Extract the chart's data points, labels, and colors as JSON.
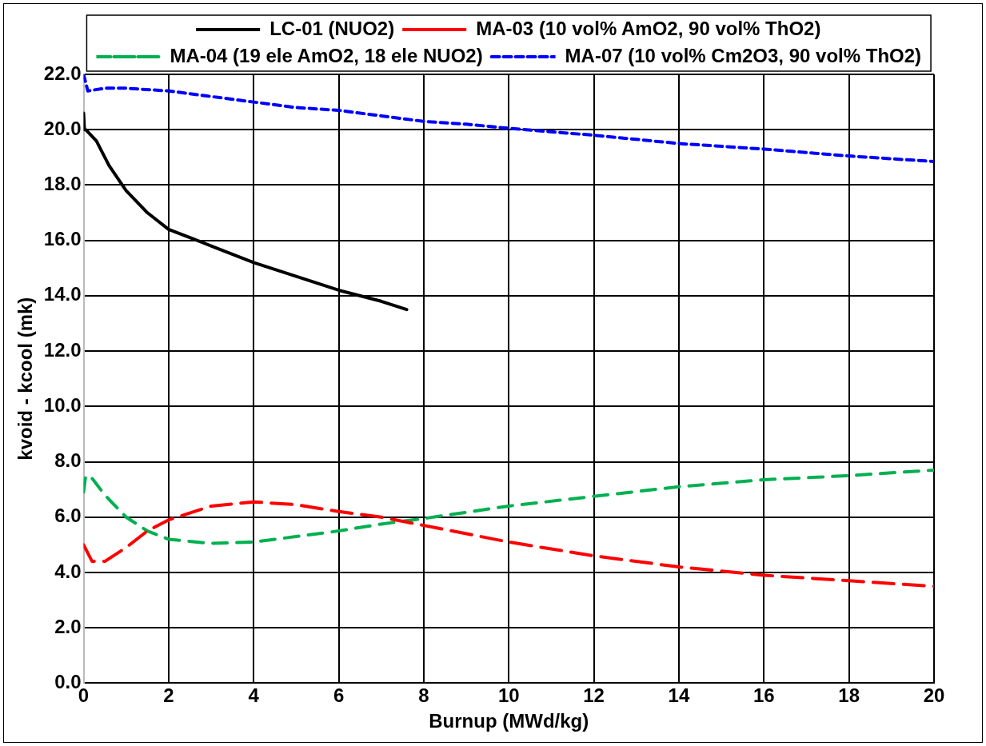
{
  "chart_data": {
    "type": "line",
    "xlabel": "Burnup (MWd/kg)",
    "ylabel": "kvoid - kcool (mk)",
    "xlim": [
      0,
      20
    ],
    "xticks": [
      0,
      2,
      4,
      6,
      8,
      10,
      12,
      14,
      16,
      18,
      20
    ],
    "ylim": [
      0,
      22
    ],
    "yticks": [
      {
        "value": 0,
        "label": "0.0"
      },
      {
        "value": 2,
        "label": "2.0"
      },
      {
        "value": 4,
        "label": "4.0"
      },
      {
        "value": 6,
        "label": "6.0"
      },
      {
        "value": 8,
        "label": "8.0"
      },
      {
        "value": 10,
        "label": "10.0"
      },
      {
        "value": 12,
        "label": "12.0"
      },
      {
        "value": 14,
        "label": "14.0"
      },
      {
        "value": 16,
        "label": "16.0"
      },
      {
        "value": 18,
        "label": "18.0"
      },
      {
        "value": 20,
        "label": "20.0"
      },
      {
        "value": 22,
        "label": "22.0"
      }
    ],
    "grid": true,
    "legend": "top",
    "marker": "none",
    "series": [
      {
        "name": "LC-01 (NUO2)",
        "color": "#000000",
        "line_style": "solid",
        "x": [
          0,
          0.02,
          0.05,
          0.3,
          0.6,
          1,
          1.5,
          2,
          2.5,
          3,
          4,
          5,
          6,
          7,
          7.6
        ],
        "values": [
          20.6,
          20.0,
          20.0,
          19.6,
          18.7,
          17.8,
          17.0,
          16.4,
          16.1,
          15.8,
          15.2,
          14.7,
          14.2,
          13.8,
          13.5
        ]
      },
      {
        "name": "MA-03 (10 vol% AmO2, 90 vol% ThO2)",
        "color": "#ff0000",
        "line_style": "longdash",
        "x": [
          0,
          0.2,
          0.5,
          1,
          1.5,
          2,
          3,
          4,
          5,
          6,
          7,
          8,
          10,
          12,
          14,
          16,
          18,
          20
        ],
        "values": [
          5.0,
          4.4,
          4.4,
          4.9,
          5.5,
          5.9,
          6.4,
          6.55,
          6.45,
          6.2,
          6.0,
          5.7,
          5.1,
          4.6,
          4.2,
          3.9,
          3.7,
          3.5
        ]
      },
      {
        "name": "MA-04 (19 ele AmO2, 18 ele NUO2)",
        "color": "#00b050",
        "line_style": "dashed",
        "x": [
          0,
          0.05,
          0.2,
          0.5,
          1,
          1.5,
          2,
          3,
          4,
          5,
          6,
          7,
          8,
          10,
          12,
          14,
          16,
          18,
          20
        ],
        "values": [
          6.9,
          7.5,
          7.4,
          6.8,
          6.0,
          5.5,
          5.2,
          5.05,
          5.1,
          5.3,
          5.5,
          5.75,
          5.95,
          6.4,
          6.75,
          7.1,
          7.35,
          7.5,
          7.7
        ]
      },
      {
        "name": "MA-07 (10 vol% Cm2O3, 90 vol% ThO2)",
        "color": "#0000ff",
        "line_style": "dotted",
        "x": [
          0,
          0.1,
          0.5,
          1,
          2,
          3,
          4,
          5,
          6,
          7,
          8,
          9,
          10,
          12,
          14,
          16,
          18,
          20
        ],
        "values": [
          22.0,
          21.4,
          21.5,
          21.5,
          21.4,
          21.2,
          21.0,
          20.8,
          20.7,
          20.5,
          20.3,
          20.2,
          20.05,
          19.8,
          19.5,
          19.3,
          19.05,
          18.85
        ]
      }
    ]
  }
}
